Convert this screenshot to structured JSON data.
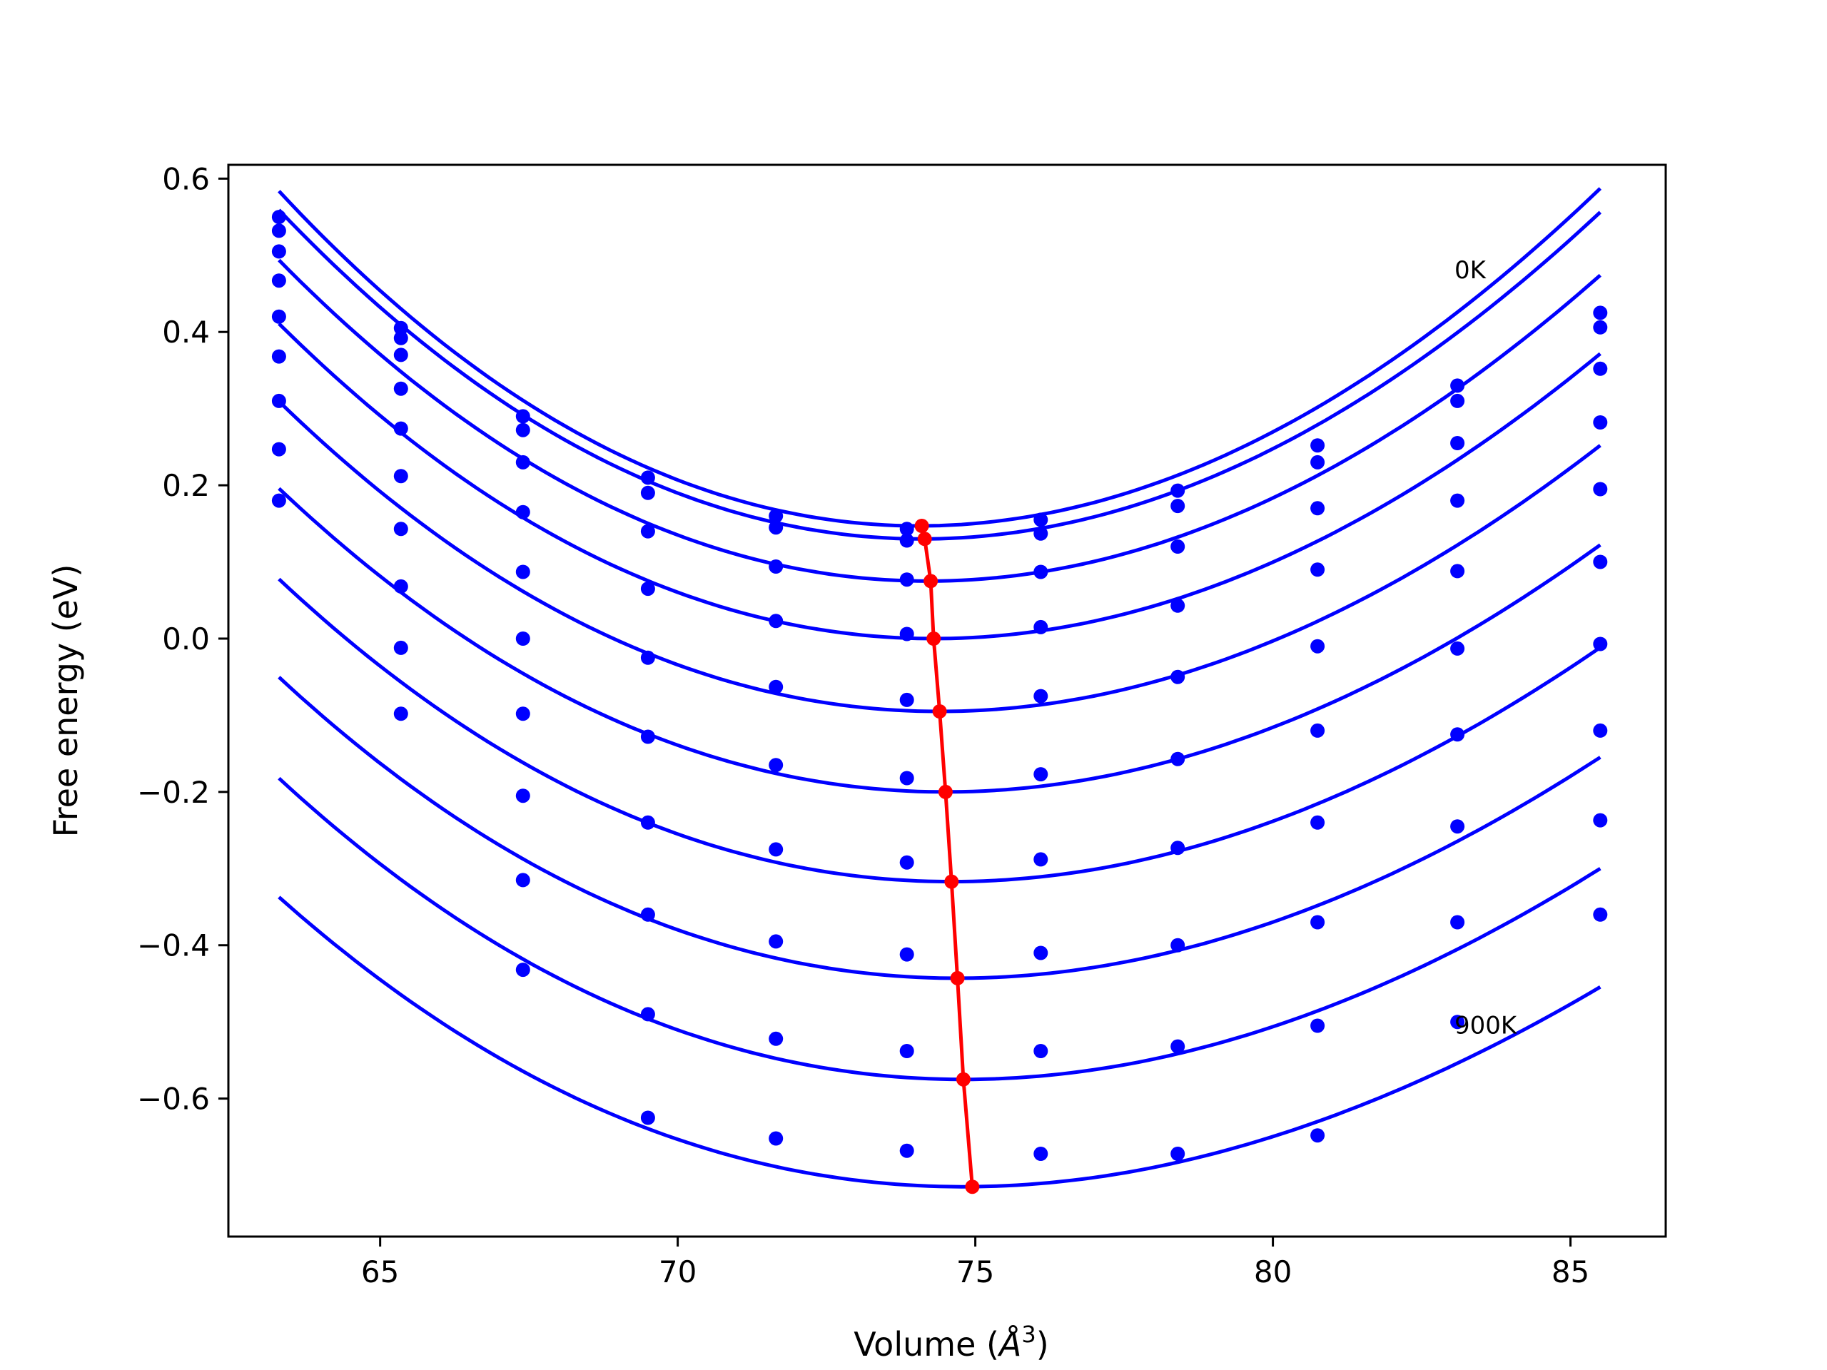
{
  "chart_data": {
    "type": "line",
    "title": "",
    "xlabel_prefix": "Volume (",
    "xlabel_symbol": "Å",
    "xlabel_exponent": "3",
    "xlabel_suffix": ")",
    "ylabel": "Free energy (eV)",
    "xlim": [
      62.45,
      86.6
    ],
    "ylim": [
      -0.78,
      0.618
    ],
    "xticks": [
      65,
      70,
      75,
      80,
      85
    ],
    "xtick_labels": [
      "65",
      "70",
      "75",
      "80",
      "85"
    ],
    "yticks": [
      -0.6,
      -0.4,
      -0.2,
      0.0,
      0.2,
      0.4,
      0.6
    ],
    "ytick_labels": [
      "−0.6",
      "−0.4",
      "−0.2",
      "0.0",
      "0.2",
      "0.4",
      "0.6"
    ],
    "grid": false,
    "curve_color": "#0000ff",
    "min_line_color": "#ff0000",
    "annotations": [
      {
        "text": "0K",
        "x": 83.05,
        "y": 0.47
      },
      {
        "text": "900K",
        "x": 83.05,
        "y": -0.515
      }
    ],
    "volumes": [
      63.3,
      65.35,
      67.4,
      69.5,
      71.65,
      73.85,
      76.1,
      78.4,
      80.75,
      83.1,
      85.5
    ],
    "series": [
      {
        "points": [
          0.55,
          0.405,
          0.29,
          0.21,
          0.16,
          0.143,
          0.155,
          0.193,
          0.252,
          0.33,
          0.425
        ],
        "fit": {
          "vmin": 74.05,
          "emin": 0.147,
          "a": 0.003575,
          "b": -1.9e-05
        }
      },
      {
        "points": [
          0.532,
          0.392,
          0.272,
          0.19,
          0.145,
          0.128,
          0.137,
          0.173,
          0.23,
          0.31,
          0.406
        ],
        "fit": {
          "vmin": 74.1,
          "emin": 0.13,
          "a": 0.003485,
          "b": -1.8e-05
        }
      },
      {
        "points": [
          0.505,
          0.37,
          0.23,
          0.14,
          0.094,
          0.077,
          0.087,
          0.12,
          0.17,
          0.255,
          0.352
        ],
        "fit": {
          "vmin": 74.2,
          "emin": 0.075,
          "a": 0.003328,
          "b": -1.8e-05
        }
      },
      {
        "points": [
          0.467,
          0.326,
          0.165,
          0.065,
          0.023,
          0.006,
          0.015,
          0.043,
          0.09,
          0.18,
          0.282
        ],
        "fit": {
          "vmin": 74.3,
          "emin": 0.0,
          "a": 0.003181,
          "b": -1.95e-05
        }
      },
      {
        "points": [
          0.42,
          0.274,
          0.087,
          -0.025,
          -0.063,
          -0.08,
          -0.075,
          -0.05,
          -0.01,
          0.088,
          0.195
        ],
        "fit": {
          "vmin": 74.4,
          "emin": -0.095,
          "a": 0.003049,
          "b": -2.1e-05
        }
      },
      {
        "points": [
          0.368,
          0.212,
          0.0,
          -0.128,
          -0.165,
          -0.182,
          -0.177,
          -0.157,
          -0.12,
          -0.013,
          0.1
        ],
        "fit": {
          "vmin": 74.5,
          "emin": -0.2,
          "a": 0.002907,
          "b": -2.22e-05
        }
      },
      {
        "points": [
          0.31,
          0.143,
          -0.098,
          -0.24,
          -0.275,
          -0.292,
          -0.288,
          -0.273,
          -0.24,
          -0.125,
          -0.007
        ],
        "fit": {
          "vmin": 74.6,
          "emin": -0.317,
          "a": 0.002826,
          "b": -2.34e-05
        }
      },
      {
        "points": [
          0.247,
          0.068,
          -0.205,
          -0.36,
          -0.395,
          -0.412,
          -0.41,
          -0.4,
          -0.37,
          -0.245,
          -0.12
        ],
        "fit": {
          "vmin": 74.7,
          "emin": -0.443,
          "a": 0.002739,
          "b": -2.48e-05
        }
      },
      {
        "points": [
          0.18,
          -0.012,
          -0.315,
          -0.49,
          -0.522,
          -0.538,
          -0.538,
          -0.532,
          -0.505,
          -0.37,
          -0.237
        ],
        "fit": {
          "vmin": 74.8,
          "emin": -0.575,
          "a": 0.002676,
          "b": -2.56e-05
        }
      },
      {
        "points": [
          null,
          -0.098,
          -0.432,
          -0.625,
          -0.652,
          -0.668,
          -0.672,
          -0.672,
          -0.648,
          -0.5,
          -0.36
        ],
        "fit": {
          "vmin": 74.8,
          "emin": -0.715,
          "a": 0.002556,
          "b": -2.62e-05
        }
      }
    ],
    "minimum_line": {
      "x": [
        74.1,
        74.15,
        74.25,
        74.3,
        74.4,
        74.5,
        74.6,
        74.7,
        74.8,
        74.95
      ],
      "y": [
        0.147,
        0.13,
        0.075,
        0.0,
        -0.095,
        -0.2,
        -0.317,
        -0.443,
        -0.575,
        -0.715
      ]
    }
  }
}
